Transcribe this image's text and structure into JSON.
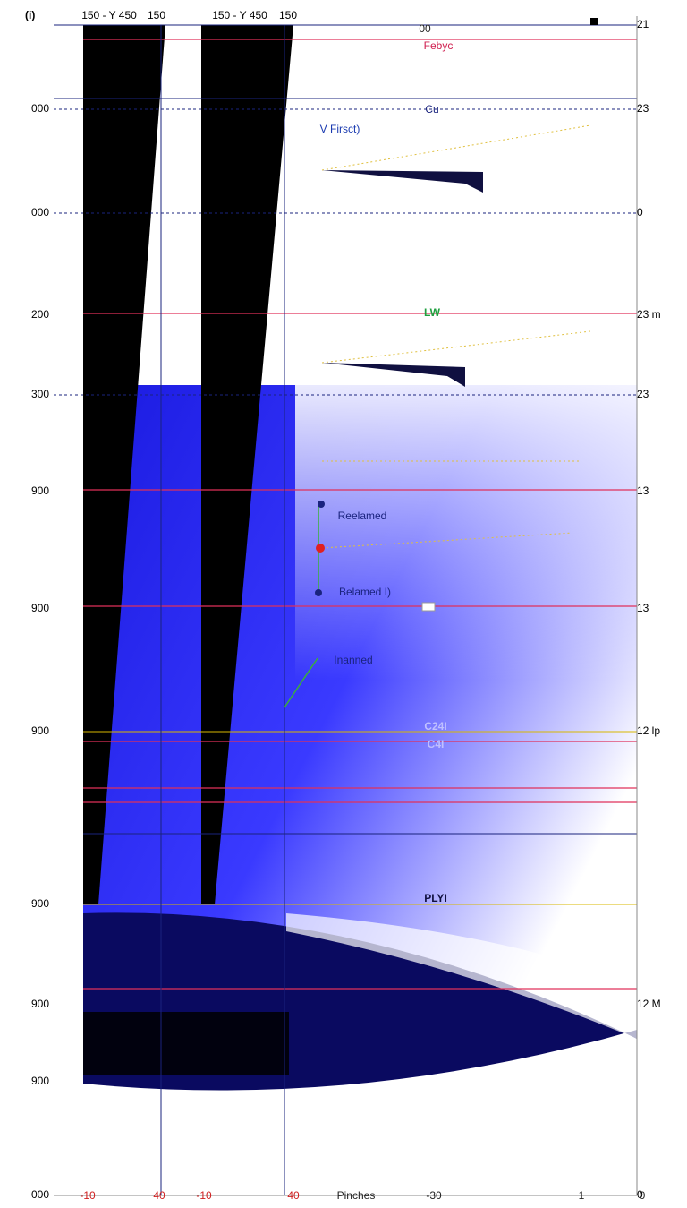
{
  "header": {
    "corner": "(i)",
    "labels": [
      "150 - Y 450",
      "150",
      "150 - Y 450",
      "150"
    ]
  },
  "left_labels": [
    "000",
    "000",
    "200",
    "300",
    "900",
    "900",
    "900",
    "900",
    "900",
    "900",
    "000"
  ],
  "right_labels": [
    "21",
    "23",
    "0",
    "23 m",
    "23",
    "13",
    "13",
    "12 lp",
    "12 M",
    "0"
  ],
  "annotations": [
    "00",
    "Febyc",
    "Cu",
    "V Firsct)",
    "LW",
    "Reelamed",
    "Belamed I)",
    "Inanned",
    "C24I",
    "C4I",
    "PLYI"
  ],
  "bottom_labels": [
    "-10",
    "40",
    "-10",
    "40",
    "Pinches",
    "-30",
    "1",
    "0"
  ]
}
